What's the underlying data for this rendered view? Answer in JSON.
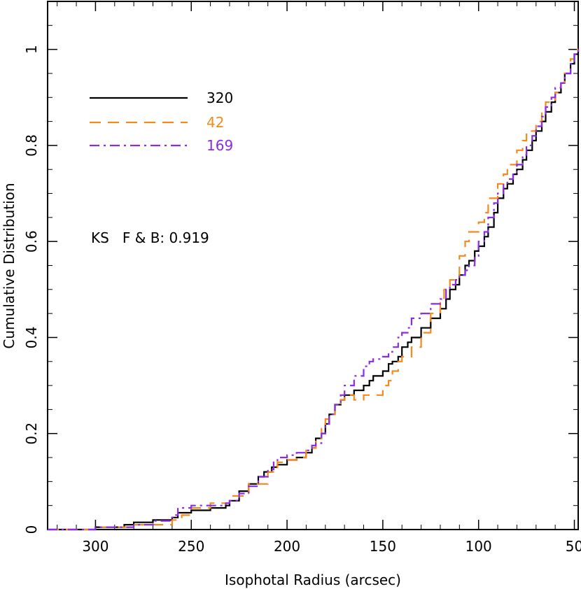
{
  "chart_data": {
    "type": "line",
    "xlabel": "Isophotal Radius (arcsec)",
    "ylabel": "Cumulative Distribution",
    "xlim": [
      325,
      48
    ],
    "ylim": [
      0,
      1.1
    ],
    "x_ticks": [
      300,
      250,
      200,
      150,
      100,
      50
    ],
    "x_tick_labels": [
      "300",
      "250",
      "200",
      "150",
      "100",
      "50"
    ],
    "y_ticks": [
      0,
      0.2,
      0.4,
      0.6,
      0.8,
      1
    ],
    "y_tick_labels": [
      "0",
      "0.2",
      "0.4",
      "0.6",
      "0.8",
      "1"
    ],
    "grid": false,
    "legend_position": "top-left",
    "annotation": "KS   F & B: 0.919",
    "series": [
      {
        "name": "320",
        "color": "#000000",
        "dash": "solid",
        "x": [
          325,
          300,
          285,
          280,
          270,
          260,
          257,
          250,
          240,
          232,
          230,
          225,
          220,
          215,
          212,
          208,
          205,
          200,
          195,
          190,
          187,
          185,
          182,
          180,
          178,
          175,
          172,
          170,
          165,
          160,
          157,
          155,
          150,
          147,
          145,
          142,
          140,
          137,
          135,
          130,
          125,
          120,
          117,
          115,
          112,
          110,
          107,
          105,
          102,
          100,
          97,
          95,
          92,
          90,
          87,
          85,
          82,
          80,
          77,
          75,
          72,
          70,
          67,
          65,
          62,
          60,
          57,
          55,
          52,
          50,
          48
        ],
        "y": [
          0,
          0.005,
          0.01,
          0.015,
          0.02,
          0.025,
          0.035,
          0.04,
          0.045,
          0.05,
          0.06,
          0.08,
          0.095,
          0.11,
          0.12,
          0.13,
          0.135,
          0.145,
          0.15,
          0.16,
          0.17,
          0.19,
          0.2,
          0.22,
          0.24,
          0.26,
          0.27,
          0.28,
          0.29,
          0.3,
          0.31,
          0.32,
          0.33,
          0.345,
          0.35,
          0.36,
          0.38,
          0.39,
          0.4,
          0.42,
          0.44,
          0.46,
          0.48,
          0.5,
          0.51,
          0.53,
          0.55,
          0.56,
          0.58,
          0.59,
          0.61,
          0.63,
          0.66,
          0.69,
          0.71,
          0.72,
          0.74,
          0.75,
          0.77,
          0.79,
          0.81,
          0.83,
          0.85,
          0.87,
          0.89,
          0.91,
          0.93,
          0.95,
          0.97,
          0.99,
          1.0
        ]
      },
      {
        "name": "42",
        "color": "#f28a1e",
        "dash": "16 10",
        "x": [
          325,
          300,
          280,
          260,
          255,
          250,
          240,
          230,
          220,
          210,
          205,
          200,
          195,
          190,
          187,
          185,
          182,
          180,
          178,
          175,
          172,
          170,
          165,
          160,
          150,
          147,
          145,
          142,
          140,
          135,
          130,
          125,
          120,
          118,
          115,
          110,
          107,
          105,
          100,
          97,
          95,
          90,
          87,
          85,
          80,
          77,
          75,
          70,
          67,
          65,
          60,
          57,
          55,
          52,
          50,
          48
        ],
        "y": [
          0,
          0.005,
          0.01,
          0.02,
          0.03,
          0.045,
          0.055,
          0.07,
          0.095,
          0.12,
          0.14,
          0.145,
          0.15,
          0.165,
          0.17,
          0.19,
          0.21,
          0.23,
          0.24,
          0.26,
          0.27,
          0.28,
          0.27,
          0.28,
          0.3,
          0.31,
          0.33,
          0.35,
          0.36,
          0.38,
          0.41,
          0.45,
          0.48,
          0.5,
          0.52,
          0.57,
          0.6,
          0.62,
          0.64,
          0.66,
          0.69,
          0.72,
          0.74,
          0.76,
          0.79,
          0.81,
          0.83,
          0.85,
          0.87,
          0.89,
          0.91,
          0.93,
          0.95,
          0.98,
          1.0,
          1.0
        ]
      },
      {
        "name": "169",
        "color": "#8b2be2",
        "dash": "14 6 3 6",
        "x": [
          325,
          300,
          280,
          270,
          260,
          258,
          257,
          250,
          240,
          232,
          230,
          225,
          220,
          215,
          210,
          207,
          205,
          200,
          195,
          190,
          187,
          185,
          182,
          180,
          178,
          175,
          172,
          170,
          165,
          160,
          157,
          155,
          150,
          147,
          145,
          142,
          140,
          137,
          135,
          130,
          125,
          120,
          117,
          115,
          112,
          110,
          107,
          105,
          102,
          100,
          97,
          95,
          92,
          90,
          87,
          85,
          82,
          80,
          77,
          75,
          72,
          70,
          67,
          65,
          62,
          60,
          57,
          55,
          52,
          50,
          48
        ],
        "y": [
          0,
          0.005,
          0.01,
          0.018,
          0.025,
          0.03,
          0.045,
          0.05,
          0.05,
          0.055,
          0.06,
          0.075,
          0.09,
          0.11,
          0.125,
          0.14,
          0.15,
          0.155,
          0.16,
          0.165,
          0.175,
          0.18,
          0.2,
          0.22,
          0.24,
          0.26,
          0.28,
          0.3,
          0.32,
          0.34,
          0.35,
          0.355,
          0.36,
          0.37,
          0.38,
          0.4,
          0.41,
          0.42,
          0.44,
          0.45,
          0.47,
          0.48,
          0.5,
          0.51,
          0.52,
          0.53,
          0.54,
          0.55,
          0.57,
          0.6,
          0.62,
          0.65,
          0.68,
          0.7,
          0.72,
          0.73,
          0.74,
          0.76,
          0.78,
          0.8,
          0.82,
          0.84,
          0.86,
          0.88,
          0.9,
          0.92,
          0.93,
          0.95,
          0.97,
          0.99,
          1.0
        ]
      }
    ]
  }
}
